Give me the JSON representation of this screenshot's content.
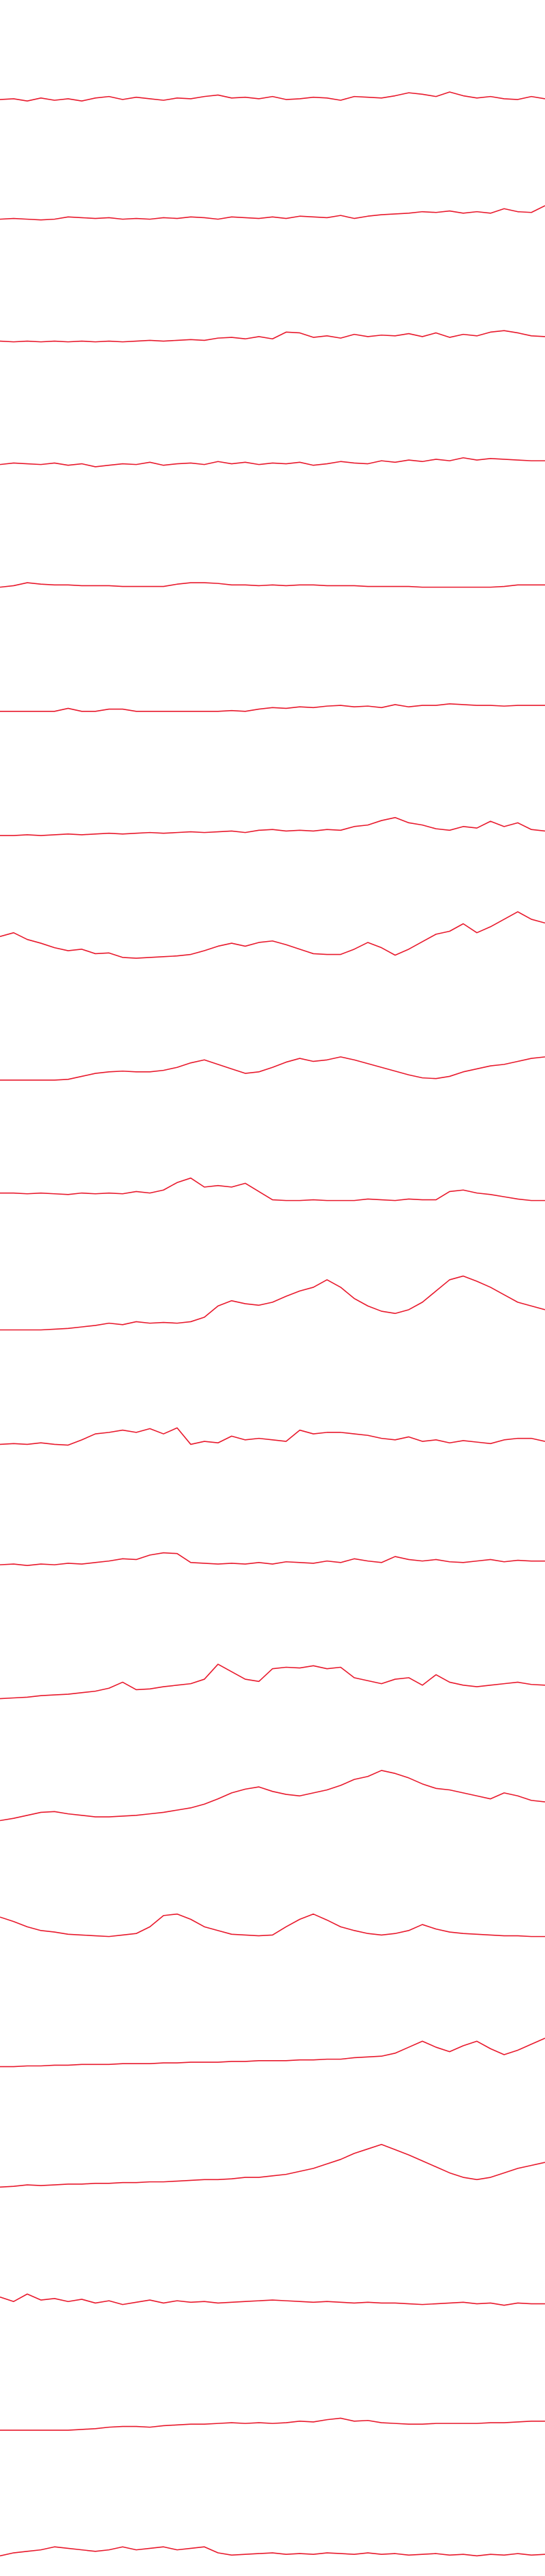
{
  "chart_data": [
    {
      "type": "line",
      "color": "#e8192c",
      "ylim": [
        0,
        100
      ],
      "values": [
        8,
        9,
        6,
        10,
        7,
        9,
        6,
        10,
        12,
        8,
        11,
        9,
        7,
        10,
        9,
        12,
        14,
        10,
        11,
        9,
        12,
        8,
        9,
        11,
        10,
        7,
        12,
        11,
        10,
        13,
        17,
        15,
        12,
        18,
        13,
        10,
        12,
        9,
        8,
        12,
        9
      ]
    },
    {
      "type": "line",
      "color": "#e8192c",
      "ylim": [
        0,
        100
      ],
      "values": [
        12,
        13,
        12,
        11,
        12,
        15,
        14,
        13,
        14,
        12,
        13,
        12,
        14,
        13,
        15,
        14,
        12,
        15,
        14,
        13,
        15,
        13,
        16,
        15,
        14,
        17,
        13,
        16,
        18,
        19,
        20,
        22,
        21,
        23,
        20,
        22,
        20,
        26,
        22,
        21,
        30
      ]
    },
    {
      "type": "line",
      "color": "#e8192c",
      "ylim": [
        0,
        100
      ],
      "values": [
        13,
        12,
        13,
        12,
        13,
        12,
        13,
        12,
        13,
        12,
        13,
        14,
        13,
        14,
        15,
        14,
        17,
        18,
        16,
        19,
        16,
        25,
        24,
        18,
        20,
        17,
        22,
        19,
        21,
        20,
        23,
        19,
        24,
        18,
        22,
        20,
        25,
        27,
        24,
        20,
        19
      ]
    },
    {
      "type": "line",
      "color": "#e8192c",
      "ylim": [
        0,
        100
      ],
      "values": [
        12,
        14,
        13,
        12,
        14,
        11,
        13,
        9,
        11,
        13,
        12,
        15,
        11,
        13,
        14,
        12,
        16,
        13,
        15,
        12,
        14,
        13,
        15,
        11,
        13,
        16,
        14,
        13,
        17,
        15,
        18,
        16,
        19,
        17,
        21,
        18,
        20,
        19,
        18,
        17,
        17
      ]
    },
    {
      "type": "line",
      "color": "#e8192c",
      "ylim": [
        0,
        100
      ],
      "values": [
        12,
        14,
        18,
        16,
        15,
        15,
        14,
        14,
        14,
        13,
        13,
        13,
        13,
        16,
        18,
        18,
        17,
        15,
        15,
        14,
        15,
        14,
        15,
        15,
        14,
        14,
        14,
        13,
        13,
        13,
        13,
        12,
        12,
        12,
        12,
        12,
        12,
        13,
        15,
        15,
        15
      ]
    },
    {
      "type": "line",
      "color": "#e8192c",
      "ylim": [
        0,
        100
      ],
      "values": [
        10,
        10,
        10,
        10,
        10,
        14,
        10,
        10,
        13,
        13,
        10,
        10,
        10,
        10,
        10,
        10,
        10,
        11,
        10,
        13,
        15,
        14,
        16,
        15,
        17,
        18,
        16,
        17,
        15,
        19,
        16,
        18,
        18,
        20,
        19,
        18,
        18,
        17,
        18,
        18,
        18
      ]
    },
    {
      "type": "line",
      "color": "#e8192c",
      "ylim": [
        0,
        100
      ],
      "values": [
        8,
        8,
        9,
        8,
        9,
        10,
        9,
        10,
        11,
        10,
        11,
        12,
        11,
        12,
        13,
        12,
        13,
        14,
        12,
        15,
        16,
        14,
        15,
        14,
        16,
        15,
        20,
        22,
        28,
        32,
        25,
        22,
        17,
        15,
        20,
        18,
        27,
        20,
        25,
        16,
        14
      ]
    },
    {
      "type": "line",
      "color": "#e8192c",
      "ylim": [
        0,
        100
      ],
      "values": [
        37,
        42,
        33,
        28,
        22,
        18,
        20,
        14,
        15,
        9,
        8,
        9,
        10,
        11,
        13,
        18,
        24,
        28,
        24,
        29,
        31,
        26,
        20,
        14,
        13,
        13,
        20,
        29,
        22,
        12,
        20,
        30,
        40,
        44,
        54,
        42,
        50,
        60,
        70,
        60,
        55
      ]
    },
    {
      "type": "line",
      "color": "#e8192c",
      "ylim": [
        0,
        100
      ],
      "values": [
        9,
        9,
        9,
        9,
        9,
        10,
        14,
        18,
        20,
        21,
        20,
        20,
        22,
        26,
        32,
        36,
        30,
        24,
        18,
        20,
        26,
        33,
        38,
        34,
        36,
        40,
        36,
        31,
        26,
        21,
        16,
        12,
        11,
        14,
        20,
        24,
        28,
        30,
        34,
        38,
        40
      ]
    },
    {
      "type": "line",
      "color": "#e8192c",
      "ylim": [
        0,
        100
      ],
      "values": [
        22,
        22,
        21,
        22,
        21,
        20,
        22,
        21,
        22,
        21,
        24,
        22,
        26,
        36,
        42,
        30,
        32,
        30,
        35,
        24,
        13,
        12,
        12,
        13,
        12,
        12,
        12,
        14,
        13,
        12,
        14,
        13,
        13,
        24,
        26,
        22,
        20,
        17,
        14,
        12,
        12
      ]
    },
    {
      "type": "line",
      "color": "#e8192c",
      "ylim": [
        0,
        100
      ],
      "values": [
        3,
        3,
        3,
        3,
        4,
        5,
        7,
        9,
        12,
        10,
        14,
        12,
        13,
        12,
        14,
        20,
        35,
        42,
        38,
        36,
        40,
        48,
        55,
        60,
        70,
        60,
        45,
        35,
        28,
        25,
        30,
        40,
        55,
        70,
        75,
        68,
        60,
        50,
        40,
        35,
        30
      ]
    },
    {
      "type": "line",
      "color": "#e8192c",
      "ylim": [
        0,
        100
      ],
      "values": [
        14,
        15,
        14,
        16,
        14,
        13,
        20,
        28,
        30,
        33,
        30,
        35,
        28,
        36,
        14,
        18,
        16,
        25,
        20,
        22,
        20,
        18,
        33,
        28,
        30,
        30,
        28,
        26,
        22,
        20,
        24,
        18,
        20,
        16,
        19,
        17,
        15,
        20,
        22,
        22,
        18
      ]
    },
    {
      "type": "line",
      "color": "#e8192c",
      "ylim": [
        0,
        100
      ],
      "values": [
        17,
        18,
        16,
        18,
        17,
        19,
        18,
        20,
        22,
        25,
        24,
        30,
        33,
        32,
        20,
        19,
        18,
        19,
        18,
        20,
        18,
        21,
        20,
        19,
        22,
        20,
        25,
        22,
        20,
        28,
        24,
        22,
        24,
        21,
        20,
        22,
        24,
        21,
        23,
        22,
        22
      ]
    },
    {
      "type": "line",
      "color": "#e8192c",
      "ylim": [
        0,
        100
      ],
      "values": [
        2,
        3,
        4,
        6,
        7,
        8,
        10,
        12,
        16,
        24,
        14,
        15,
        18,
        20,
        22,
        28,
        48,
        38,
        28,
        25,
        42,
        44,
        43,
        46,
        42,
        44,
        30,
        26,
        22,
        28,
        30,
        20,
        34,
        24,
        20,
        18,
        20,
        22,
        24,
        21,
        20
      ]
    },
    {
      "type": "line",
      "color": "#e8192c",
      "ylim": [
        0,
        100
      ],
      "values": [
        3,
        6,
        10,
        14,
        15,
        12,
        10,
        8,
        8,
        9,
        10,
        12,
        14,
        17,
        20,
        25,
        32,
        40,
        45,
        48,
        42,
        38,
        36,
        40,
        44,
        50,
        58,
        62,
        70,
        66,
        60,
        52,
        46,
        44,
        40,
        36,
        32,
        40,
        36,
        30,
        28
      ]
    },
    {
      "type": "line",
      "color": "#e8192c",
      "ylim": [
        0,
        100
      ],
      "values": [
        38,
        32,
        25,
        20,
        18,
        15,
        14,
        13,
        12,
        14,
        16,
        25,
        40,
        42,
        35,
        25,
        20,
        15,
        14,
        13,
        14,
        25,
        35,
        42,
        34,
        25,
        20,
        16,
        14,
        16,
        20,
        28,
        22,
        18,
        16,
        15,
        14,
        13,
        13,
        12,
        12
      ]
    },
    {
      "type": "line",
      "color": "#e8192c",
      "ylim": [
        0,
        100
      ],
      "values": [
        2,
        2,
        3,
        3,
        4,
        4,
        5,
        5,
        5,
        6,
        6,
        6,
        7,
        7,
        8,
        8,
        8,
        9,
        9,
        10,
        10,
        10,
        11,
        11,
        12,
        12,
        14,
        15,
        16,
        20,
        28,
        36,
        28,
        22,
        30,
        36,
        26,
        18,
        24,
        32,
        40
      ]
    },
    {
      "type": "line",
      "color": "#e8192c",
      "ylim": [
        0,
        100
      ],
      "values": [
        5,
        6,
        8,
        7,
        8,
        9,
        9,
        10,
        10,
        11,
        11,
        12,
        12,
        13,
        14,
        15,
        15,
        16,
        18,
        18,
        20,
        22,
        26,
        30,
        36,
        42,
        50,
        56,
        62,
        55,
        48,
        40,
        32,
        24,
        18,
        15,
        18,
        24,
        30,
        34,
        38
      ]
    },
    {
      "type": "line",
      "color": "#e8192c",
      "ylim": [
        0,
        100
      ],
      "values": [
        22,
        16,
        26,
        18,
        20,
        16,
        19,
        14,
        17,
        12,
        15,
        18,
        14,
        17,
        15,
        16,
        14,
        15,
        16,
        17,
        18,
        17,
        16,
        15,
        16,
        15,
        14,
        15,
        14,
        14,
        13,
        12,
        13,
        14,
        15,
        13,
        14,
        11,
        14,
        13,
        13
      ]
    },
    {
      "type": "line",
      "color": "#e8192c",
      "ylim": [
        0,
        100
      ],
      "values": [
        8,
        8,
        8,
        8,
        8,
        8,
        9,
        10,
        12,
        13,
        13,
        12,
        14,
        15,
        16,
        16,
        17,
        18,
        17,
        18,
        17,
        18,
        20,
        19,
        22,
        24,
        20,
        21,
        18,
        17,
        16,
        16,
        17,
        17,
        17,
        17,
        18,
        18,
        19,
        20,
        20
      ]
    },
    {
      "type": "line",
      "color": "#e8192c",
      "ylim": [
        0,
        100
      ],
      "values": [
        4,
        8,
        10,
        12,
        16,
        14,
        12,
        10,
        12,
        16,
        12,
        14,
        16,
        12,
        14,
        16,
        8,
        5,
        6,
        7,
        8,
        6,
        7,
        6,
        8,
        7,
        6,
        8,
        6,
        7,
        5,
        6,
        7,
        5,
        6,
        4,
        6,
        5,
        7,
        5,
        6
      ]
    }
  ]
}
